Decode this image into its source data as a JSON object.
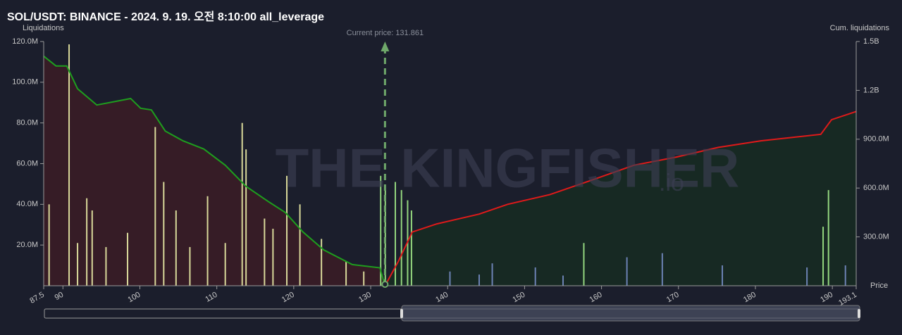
{
  "chart_data": {
    "type": "bar",
    "title": "SOL/USDT: BINANCE - 2024. 9. 19. 오전 8:10:00 all_leverage",
    "y_label": "Liquidations",
    "y2_label": "Cum. liquidations",
    "x_label": "Price",
    "annotation": "Current price: 131.861",
    "current_price": 131.861,
    "watermark": "THE KINGFISHER",
    "watermark_suffix": ".io",
    "xlim": [
      87.5,
      193.1
    ],
    "xticks": [
      87.5,
      90,
      100,
      110,
      120,
      130,
      140,
      150,
      160,
      170,
      180,
      190,
      193.1
    ],
    "ylim": [
      0,
      120000000
    ],
    "yticks": [
      {
        "value": 20000000,
        "label": "20.0M"
      },
      {
        "value": 40000000,
        "label": "40.0M"
      },
      {
        "value": 60000000,
        "label": "60.0M"
      },
      {
        "value": 80000000,
        "label": "80.0M"
      },
      {
        "value": 100000000,
        "label": "100.0M"
      },
      {
        "value": 120000000,
        "label": "120.0M"
      }
    ],
    "y2lim": [
      0,
      1500000000
    ],
    "y2ticks": [
      {
        "value": 300000000,
        "label": "300.0M"
      },
      {
        "value": 600000000,
        "label": "600.0M"
      },
      {
        "value": 900000000,
        "label": "900.0M"
      },
      {
        "value": 1200000000,
        "label": "1.2B"
      },
      {
        "value": 1500000000,
        "label": "1.5B"
      }
    ],
    "series": [
      {
        "type": "bar",
        "color": "#d9d99a",
        "x": [
          88.2,
          90.8,
          91.9,
          93.1,
          93.8,
          95.6,
          98.4,
          102.0,
          103.1,
          104.7,
          106.5,
          108.8,
          111.1,
          113.3,
          113.8,
          116.2,
          117.3,
          119.1,
          120.8,
          123.6,
          126.8,
          129.1
        ],
        "values": [
          40000000,
          118600000,
          21000000,
          43000000,
          37000000,
          19000000,
          26000000,
          78000000,
          51000000,
          37000000,
          19000000,
          44000000,
          21000000,
          80000000,
          67000000,
          33000000,
          28000000,
          54000000,
          40000000,
          23000000,
          12000000,
          7000000
        ]
      },
      {
        "type": "bar",
        "color": "#93d67e",
        "x": [
          131.3,
          131.9,
          133.2,
          134.0,
          134.8,
          135.3,
          157.7,
          188.8,
          189.5
        ],
        "values": [
          54000000,
          47000000,
          51000000,
          47000000,
          42000000,
          37000000,
          21000000,
          29000000,
          47000000
        ]
      },
      {
        "type": "bar",
        "color": "#6c82b4",
        "x": [
          140.3,
          144.1,
          145.8,
          151.4,
          155.0,
          163.3,
          167.9,
          175.7,
          186.7,
          191.7
        ],
        "values": [
          7000000,
          5500000,
          11000000,
          9000000,
          5000000,
          14000000,
          16000000,
          10000000,
          9000000,
          10000000
        ]
      },
      {
        "type": "line",
        "axis": "y2",
        "color": "#1e9e1e",
        "fill": "#3a1c26",
        "x": [
          87.5,
          89.1,
          90.5,
          91.9,
          94.4,
          98.8,
          100.1,
          101.5,
          103.3,
          105.6,
          108.3,
          111.1,
          113.8,
          116.6,
          118.9,
          121.2,
          123.9,
          127.6,
          131.2,
          131.861
        ],
        "values": [
          1410000000,
          1350000000,
          1350000000,
          1210000000,
          1110000000,
          1150000000,
          1090000000,
          1080000000,
          950000000,
          890000000,
          840000000,
          740000000,
          610000000,
          520000000,
          450000000,
          330000000,
          220000000,
          130000000,
          110000000,
          0
        ]
      },
      {
        "type": "line",
        "axis": "y2",
        "color": "#e01a1a",
        "fill": "#172a22",
        "x": [
          131.861,
          133.6,
          135.4,
          138.6,
          144.1,
          147.8,
          153.3,
          158.8,
          164.2,
          169.7,
          175.2,
          180.7,
          188.5,
          189.9,
          193.1
        ],
        "values": [
          0,
          150000000,
          330000000,
          380000000,
          440000000,
          500000000,
          560000000,
          650000000,
          740000000,
          790000000,
          850000000,
          890000000,
          930000000,
          1020000000,
          1070000000
        ]
      }
    ]
  }
}
